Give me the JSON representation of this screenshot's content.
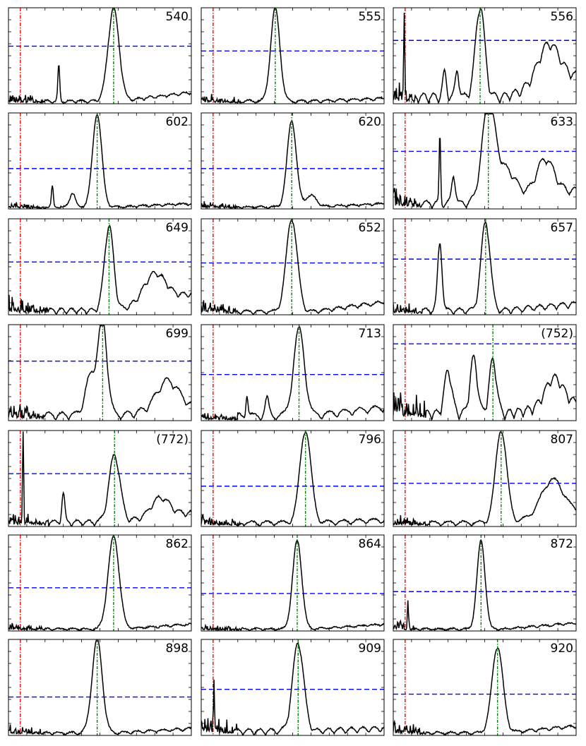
{
  "chart_data": {
    "type": "line",
    "layout": {
      "rows": 7,
      "cols": 3
    },
    "x_range": [
      0,
      1
    ],
    "y_range": [
      0,
      1
    ],
    "grid": false,
    "colors": {
      "curve": "#000000",
      "threshold": "#0000ff",
      "red_marker": "#ff0000",
      "green_marker": "#008000"
    },
    "panels": [
      {
        "label": "540",
        "threshold": 0.6,
        "red_x": 0.065,
        "green_x": 0.575,
        "curve": {
          "noise_end": 0.2,
          "noise_level": 0.13,
          "peaks": [
            [
              0.575,
              0.97,
              0.03
            ],
            [
              0.275,
              0.38,
              0.005
            ]
          ],
          "tail": 0.13,
          "wave_amp": 0.03,
          "wave_freq": 16
        }
      },
      {
        "label": "555",
        "threshold": 0.55,
        "red_x": 0.065,
        "green_x": 0.405,
        "curve": {
          "noise_end": 0.22,
          "noise_level": 0.12,
          "peaks": [
            [
              0.405,
              0.97,
              0.025
            ]
          ],
          "tail": 0.04,
          "wave_amp": 0.03,
          "wave_freq": 14
        }
      },
      {
        "label": "556",
        "threshold": 0.66,
        "red_x": 0.065,
        "green_x": 0.475,
        "curve": {
          "noise_end": 0.12,
          "noise_level": 0.25,
          "peaks": [
            [
              0.475,
              0.95,
              0.025
            ],
            [
              0.06,
              0.9,
              0.003
            ],
            [
              0.35,
              0.28,
              0.01
            ],
            [
              0.28,
              0.25,
              0.01
            ],
            [
              0.85,
              0.42,
              0.06
            ]
          ],
          "tail": 0.3,
          "wave_amp": 0.1,
          "wave_freq": 18
        }
      },
      {
        "label": "602",
        "threshold": 0.42,
        "red_x": 0.065,
        "green_x": 0.485,
        "curve": {
          "noise_end": 0.2,
          "noise_level": 0.07,
          "peaks": [
            [
              0.485,
              0.97,
              0.025
            ],
            [
              0.24,
              0.22,
              0.005
            ],
            [
              0.35,
              0.15,
              0.015
            ]
          ],
          "tail": 0.05,
          "wave_amp": 0.02,
          "wave_freq": 14
        }
      },
      {
        "label": "620",
        "threshold": 0.42,
        "red_x": 0.065,
        "green_x": 0.495,
        "curve": {
          "noise_end": 0.2,
          "noise_level": 0.1,
          "peaks": [
            [
              0.495,
              0.9,
              0.025
            ],
            [
              0.6,
              0.12,
              0.03
            ]
          ],
          "tail": 0.05,
          "wave_amp": 0.02,
          "wave_freq": 14
        }
      },
      {
        "label": "633",
        "threshold": 0.6,
        "red_x": 0.065,
        "green_x": 0.52,
        "curve": {
          "noise_end": 0.15,
          "noise_level": 0.25,
          "peaks": [
            [
              0.52,
              0.95,
              0.035
            ],
            [
              0.255,
              0.72,
              0.004
            ],
            [
              0.33,
              0.3,
              0.01
            ],
            [
              0.61,
              0.35,
              0.06
            ],
            [
              0.83,
              0.38,
              0.05
            ]
          ],
          "tail": 0.2,
          "wave_amp": 0.08,
          "wave_freq": 16
        }
      },
      {
        "label": "649",
        "threshold": 0.55,
        "red_x": 0.065,
        "green_x": 0.55,
        "curve": {
          "noise_end": 0.22,
          "noise_level": 0.2,
          "peaks": [
            [
              0.55,
              0.88,
              0.025
            ],
            [
              0.8,
              0.3,
              0.06
            ]
          ],
          "tail": 0.25,
          "wave_amp": 0.06,
          "wave_freq": 18
        }
      },
      {
        "label": "652",
        "threshold": 0.54,
        "red_x": 0.065,
        "green_x": 0.495,
        "curve": {
          "noise_end": 0.2,
          "noise_level": 0.2,
          "peaks": [
            [
              0.495,
              0.97,
              0.03
            ]
          ],
          "tail": 0.14,
          "wave_amp": 0.04,
          "wave_freq": 14
        }
      },
      {
        "label": "657",
        "threshold": 0.58,
        "red_x": 0.065,
        "green_x": 0.505,
        "curve": {
          "noise_end": 0.16,
          "noise_level": 0.16,
          "peaks": [
            [
              0.505,
              0.92,
              0.025
            ],
            [
              0.255,
              0.7,
              0.012
            ]
          ],
          "tail": 0.1,
          "wave_amp": 0.06,
          "wave_freq": 16
        }
      },
      {
        "label": "699",
        "threshold": 0.62,
        "red_x": 0.065,
        "green_x": 0.515,
        "curve": {
          "noise_end": 0.2,
          "noise_level": 0.22,
          "peaks": [
            [
              0.515,
              0.95,
              0.025
            ],
            [
              0.45,
              0.4,
              0.03
            ],
            [
              0.87,
              0.3,
              0.06
            ]
          ],
          "tail": 0.12,
          "wave_amp": 0.08,
          "wave_freq": 14
        }
      },
      {
        "label": "713",
        "threshold": 0.48,
        "red_x": 0.065,
        "green_x": 0.535,
        "curve": {
          "noise_end": 0.2,
          "noise_level": 0.1,
          "peaks": [
            [
              0.535,
              0.9,
              0.03
            ],
            [
              0.25,
              0.22,
              0.006
            ],
            [
              0.36,
              0.18,
              0.01
            ]
          ],
          "tail": 0.12,
          "wave_amp": 0.07,
          "wave_freq": 12
        }
      },
      {
        "label": "(752)",
        "threshold": 0.8,
        "red_x": 0.065,
        "green_x": 0.545,
        "curve": {
          "noise_end": 0.18,
          "noise_level": 0.4,
          "peaks": [
            [
              0.545,
              0.56,
              0.02
            ],
            [
              0.44,
              0.58,
              0.02
            ],
            [
              0.3,
              0.45,
              0.02
            ],
            [
              0.88,
              0.3,
              0.05
            ]
          ],
          "tail": 0.15,
          "wave_amp": 0.1,
          "wave_freq": 20
        }
      },
      {
        "label": "(772)",
        "threshold": 0.55,
        "red_x": 0.065,
        "green_x": 0.58,
        "curve": {
          "noise_end": 0.22,
          "noise_level": 0.18,
          "peaks": [
            [
              0.58,
              0.7,
              0.03
            ],
            [
              0.08,
              0.95,
              0.003
            ],
            [
              0.3,
              0.3,
              0.008
            ],
            [
              0.83,
              0.2,
              0.05
            ]
          ],
          "tail": 0.14,
          "wave_amp": 0.06,
          "wave_freq": 16
        }
      },
      {
        "label": "796",
        "threshold": 0.42,
        "red_x": 0.065,
        "green_x": 0.57,
        "curve": {
          "noise_end": 0.22,
          "noise_level": 0.14,
          "peaks": [
            [
              0.57,
              0.97,
              0.03
            ]
          ],
          "tail": 0.04,
          "wave_amp": 0.05,
          "wave_freq": 12
        }
      },
      {
        "label": "807",
        "threshold": 0.45,
        "red_x": 0.065,
        "green_x": 0.59,
        "curve": {
          "noise_end": 0.2,
          "noise_level": 0.14,
          "peaks": [
            [
              0.59,
              0.97,
              0.03
            ],
            [
              0.87,
              0.38,
              0.06
            ]
          ],
          "tail": 0.15,
          "wave_amp": 0.05,
          "wave_freq": 12
        }
      },
      {
        "label": "862",
        "threshold": 0.45,
        "red_x": 0.065,
        "green_x": 0.575,
        "curve": {
          "noise_end": 0.2,
          "noise_level": 0.1,
          "peaks": [
            [
              0.575,
              0.97,
              0.03
            ]
          ],
          "tail": 0.07,
          "wave_amp": 0.02,
          "wave_freq": 14
        }
      },
      {
        "label": "864",
        "threshold": 0.39,
        "red_x": 0.065,
        "green_x": 0.525,
        "curve": {
          "noise_end": 0.22,
          "noise_level": 0.08,
          "peaks": [
            [
              0.525,
              0.92,
              0.025
            ]
          ],
          "tail": 0.07,
          "wave_amp": 0.02,
          "wave_freq": 14
        }
      },
      {
        "label": "872",
        "threshold": 0.41,
        "red_x": 0.065,
        "green_x": 0.48,
        "curve": {
          "noise_end": 0.12,
          "noise_level": 0.12,
          "peaks": [
            [
              0.48,
              0.92,
              0.022
            ],
            [
              0.08,
              0.28,
              0.003
            ]
          ],
          "tail": 0.09,
          "wave_amp": 0.02,
          "wave_freq": 14
        }
      },
      {
        "label": "898",
        "threshold": 0.4,
        "red_x": 0.065,
        "green_x": 0.485,
        "curve": {
          "noise_end": 0.2,
          "noise_level": 0.14,
          "peaks": [
            [
              0.485,
              0.97,
              0.028
            ]
          ],
          "tail": 0.06,
          "wave_amp": 0.03,
          "wave_freq": 14
        }
      },
      {
        "label": "909",
        "threshold": 0.48,
        "red_x": 0.065,
        "green_x": 0.53,
        "curve": {
          "noise_end": 0.2,
          "noise_level": 0.25,
          "peaks": [
            [
              0.53,
              0.92,
              0.03
            ],
            [
              0.07,
              0.45,
              0.003
            ]
          ],
          "tail": 0.04,
          "wave_amp": 0.06,
          "wave_freq": 16
        }
      },
      {
        "label": "920",
        "threshold": 0.43,
        "red_x": 0.065,
        "green_x": 0.57,
        "curve": {
          "noise_end": 0.18,
          "noise_level": 0.16,
          "peaks": [
            [
              0.57,
              0.9,
              0.03
            ]
          ],
          "tail": 0.1,
          "wave_amp": 0.03,
          "wave_freq": 14
        }
      }
    ]
  }
}
